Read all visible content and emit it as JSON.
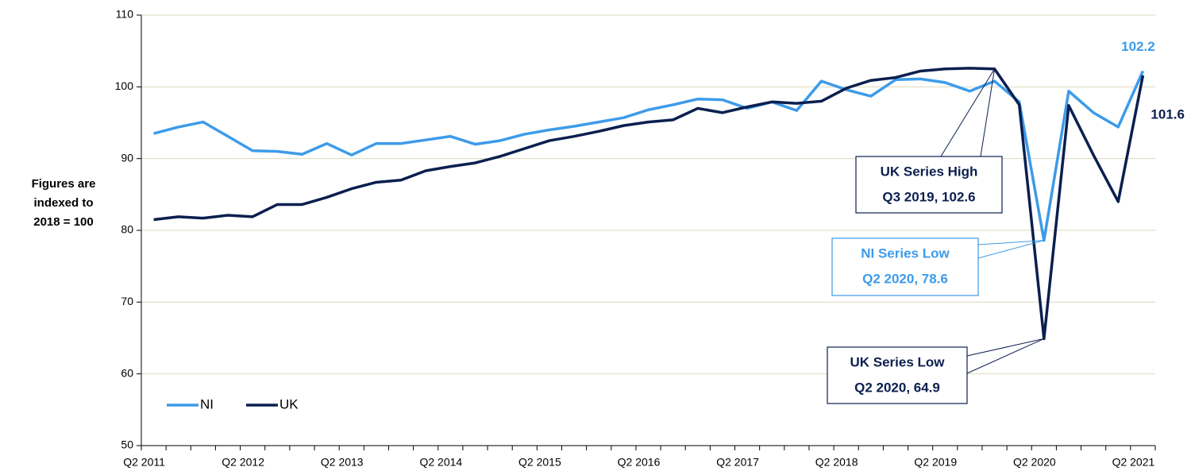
{
  "chart_data": {
    "type": "line",
    "y_label": [
      "Figures are",
      "indexed to",
      "2018 = 100"
    ],
    "categories": [
      "Q2 2011",
      null,
      null,
      null,
      "Q2 2012",
      null,
      null,
      null,
      "Q2 2013",
      null,
      null,
      null,
      "Q2 2014",
      null,
      null,
      null,
      "Q2 2015",
      null,
      null,
      null,
      "Q2 2016",
      null,
      null,
      null,
      "Q2 2017",
      null,
      null,
      null,
      "Q2 2018",
      null,
      null,
      null,
      "Q2 2019",
      null,
      null,
      null,
      "Q2 2020",
      null,
      null,
      null,
      "Q2 2021"
    ],
    "series": [
      {
        "name": "NI",
        "color": "#3d9be9",
        "values": [
          93.5,
          94.4,
          95.1,
          93.1,
          91.1,
          91.0,
          90.6,
          92.1,
          90.5,
          92.1,
          92.1,
          92.6,
          93.1,
          92.0,
          92.5,
          93.4,
          94.0,
          94.5,
          95.1,
          95.7,
          96.8,
          97.5,
          98.3,
          98.2,
          97.0,
          97.9,
          96.7,
          100.8,
          99.6,
          98.7,
          101.0,
          101.1,
          100.6,
          99.4,
          100.8,
          97.9,
          78.6,
          99.4,
          96.4,
          94.4,
          102.2
        ]
      },
      {
        "name": "UK",
        "color": "#0b1f4f",
        "values": [
          81.5,
          81.9,
          81.7,
          82.1,
          81.9,
          83.6,
          83.6,
          84.6,
          85.8,
          86.7,
          87.0,
          88.3,
          88.9,
          89.4,
          90.3,
          91.4,
          92.5,
          93.1,
          93.8,
          94.6,
          95.1,
          95.4,
          97.0,
          96.4,
          97.2,
          97.9,
          97.7,
          98.0,
          99.8,
          100.9,
          101.3,
          102.2,
          102.5,
          102.6,
          102.5,
          97.5,
          64.9,
          97.4,
          90.5,
          84.0,
          101.6
        ]
      }
    ],
    "annotations": [
      {
        "lines": [
          "UK Series High",
          "Q3 2019, 102.6"
        ],
        "color": "#0b1f4f"
      },
      {
        "lines": [
          "NI Series Low",
          "Q2 2020, 78.6"
        ],
        "color": "#3d9be9"
      },
      {
        "lines": [
          "UK Series Low",
          "Q2 2020, 64.9"
        ],
        "color": "#0b1f4f"
      }
    ],
    "ylim": [
      50,
      110
    ],
    "yticks": [
      50,
      60,
      70,
      80,
      90,
      100,
      110
    ],
    "grid": true,
    "legend": "lower-left"
  }
}
